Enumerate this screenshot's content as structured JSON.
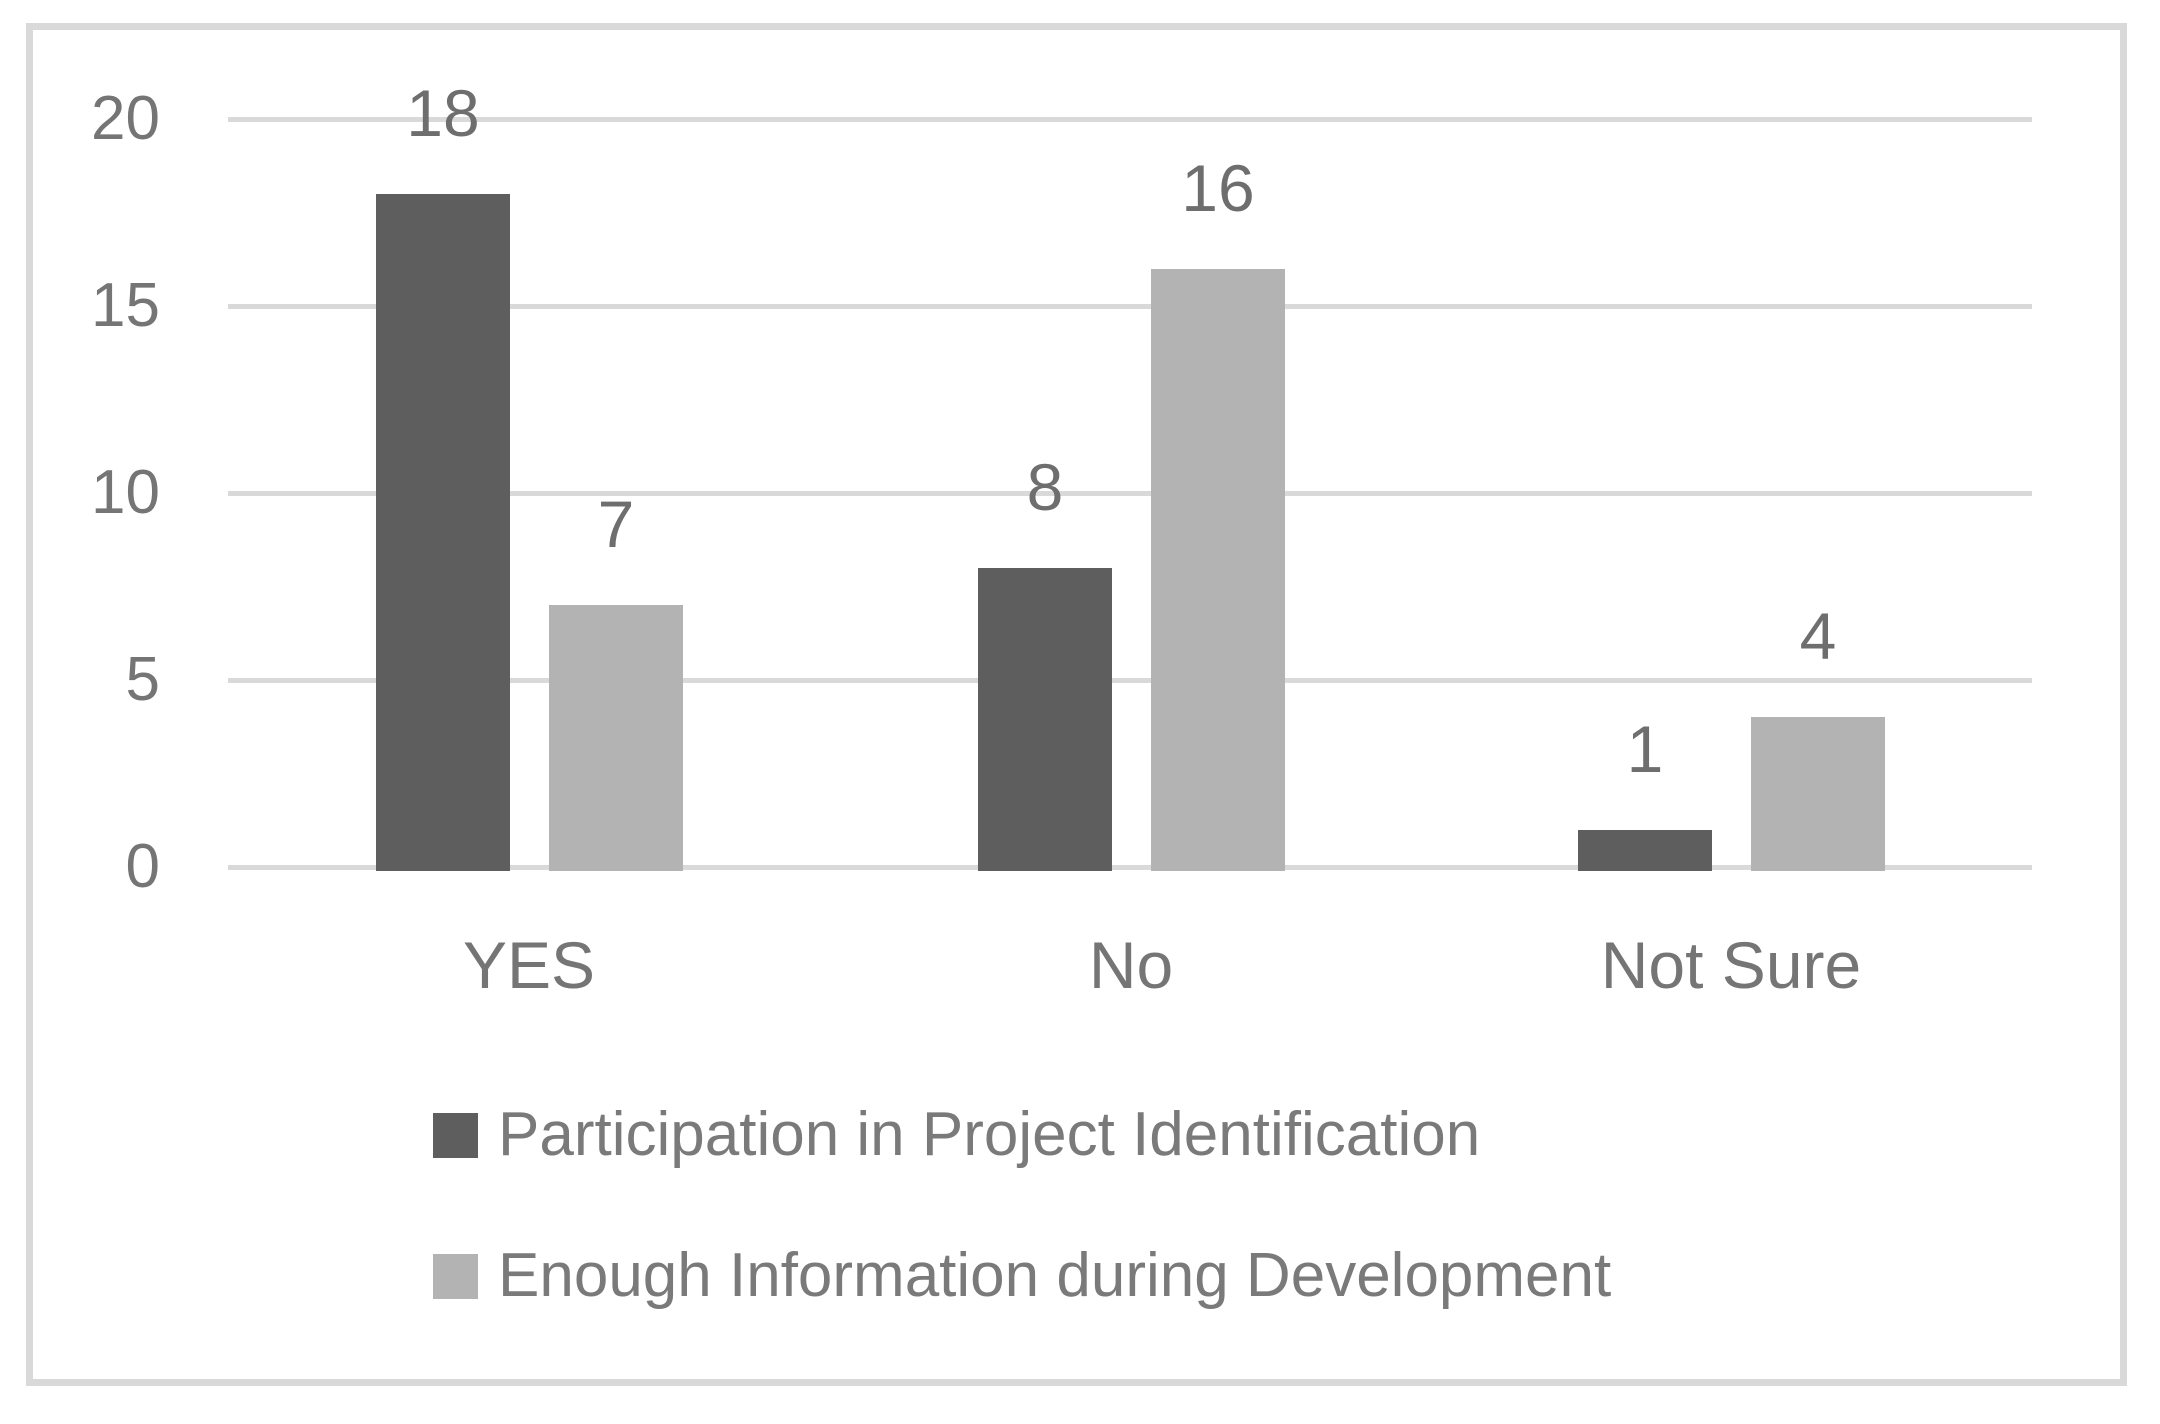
{
  "chart_data": {
    "type": "bar",
    "title": "",
    "xlabel": "",
    "ylabel": "",
    "categories": [
      "YES",
      "No",
      "Not Sure"
    ],
    "series": [
      {
        "name": "Participation in Project Identification",
        "color": "#5e5e5e",
        "values": [
          18,
          8,
          1
        ]
      },
      {
        "name": "Enough Information during Development",
        "color": "#b3b3b3",
        "values": [
          7,
          16,
          4
        ]
      }
    ],
    "yticks": [
      0,
      5,
      10,
      15,
      20
    ],
    "ylim": [
      0,
      20
    ],
    "grid": true,
    "legend_position": "bottom",
    "data_labels": true
  },
  "colors": {
    "gridline": "#d9d9d9",
    "frame_border": "#d9d9d9",
    "tick_text": "#757575",
    "category_text": "#757575",
    "data_label_text": "#6e6e6e",
    "legend_text": "#7a7a7a",
    "background": "#ffffff"
  }
}
